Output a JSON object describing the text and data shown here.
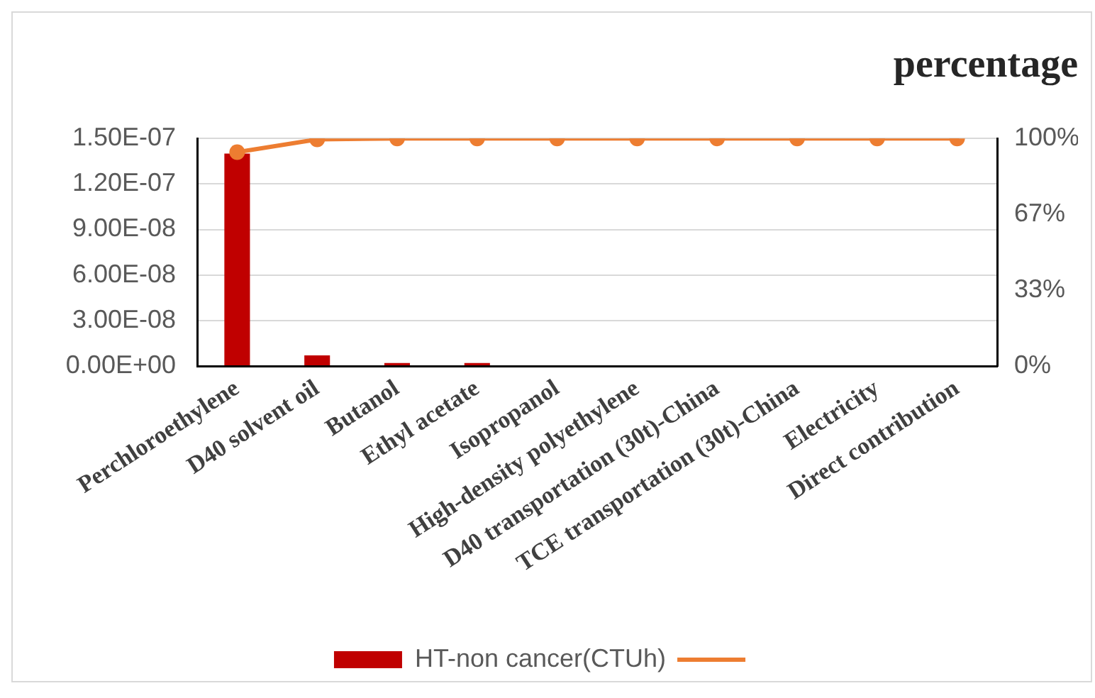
{
  "chart_data": {
    "type": "bar",
    "title": "percentage",
    "categories": [
      "Perchloroethylene",
      "D40 solvent oil",
      "Butanol",
      "Ethyl acetate",
      "Isopropanol",
      "High-density polyethylene",
      "D40 transportation (30t)-China",
      "TCE transportation (30t)-China",
      "Electricity",
      "Direct contribution"
    ],
    "series": [
      {
        "name": "HT-non cancer(CTUh)",
        "color": "#c00000",
        "values": [
          1.4e-07,
          7e-09,
          2e-09,
          2e-09,
          0,
          0,
          0,
          0,
          0,
          0
        ]
      },
      {
        "type": "line",
        "axis": "y2",
        "color": "#ed7d31",
        "values": [
          94,
          99.6,
          100,
          100,
          100,
          100,
          100,
          100,
          100,
          100
        ]
      }
    ],
    "ylim": [
      0,
      1.5e-07
    ],
    "yticks": [
      {
        "value": 0,
        "label": "0.00E+00"
      },
      {
        "value": 3e-08,
        "label": "3.00E-08"
      },
      {
        "value": 6e-08,
        "label": "6.00E-08"
      },
      {
        "value": 9e-08,
        "label": "9.00E-08"
      },
      {
        "value": 1.2e-07,
        "label": "1.20E-07"
      },
      {
        "value": 1.5e-07,
        "label": "1.50E-07"
      }
    ],
    "y2lim": [
      0,
      100
    ],
    "y2ticks": [
      {
        "value": 0,
        "label": "0%"
      },
      {
        "value": 33.33,
        "label": "33%"
      },
      {
        "value": 66.67,
        "label": "67%"
      },
      {
        "value": 100,
        "label": "100%"
      }
    ],
    "grid": "y",
    "legend": "bottom",
    "marker": "circle",
    "line_style": "solid"
  }
}
